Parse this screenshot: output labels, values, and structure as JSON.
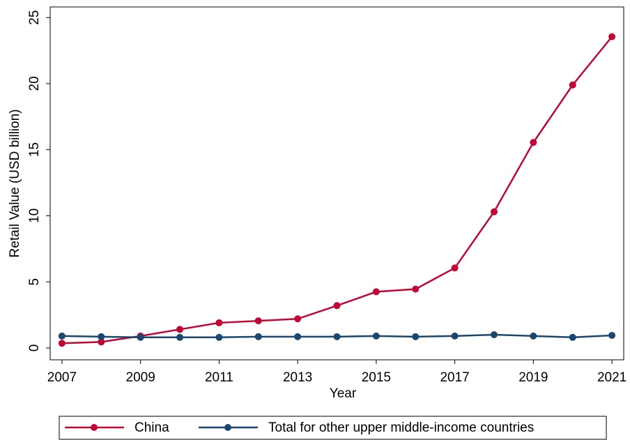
{
  "chart_data": {
    "type": "line",
    "x_label": "Year",
    "y_label": "Retail Value (USD billion)",
    "x": [
      2007,
      2008,
      2009,
      2010,
      2011,
      2012,
      2013,
      2014,
      2015,
      2016,
      2017,
      2018,
      2019,
      2020,
      2021
    ],
    "series": [
      {
        "name": "China",
        "color": "#c10534",
        "values": [
          0.35,
          0.45,
          0.9,
          1.4,
          1.9,
          2.05,
          2.2,
          3.2,
          4.25,
          4.45,
          6.05,
          10.3,
          15.55,
          19.9,
          23.55
        ]
      },
      {
        "name": "Total for other upper middle-income countries",
        "color": "#1a476f",
        "values": [
          0.9,
          0.85,
          0.8,
          0.8,
          0.8,
          0.85,
          0.85,
          0.85,
          0.9,
          0.85,
          0.9,
          1.0,
          0.9,
          0.8,
          0.95
        ]
      }
    ],
    "xlim": [
      2006.7,
      2021.3
    ],
    "ylim": [
      -0.9,
      25.8
    ],
    "xticks": [
      2007,
      2009,
      2011,
      2013,
      2015,
      2017,
      2019,
      2021
    ],
    "yticks": [
      0,
      5,
      10,
      15,
      20,
      25
    ],
    "legend": "bottom"
  }
}
